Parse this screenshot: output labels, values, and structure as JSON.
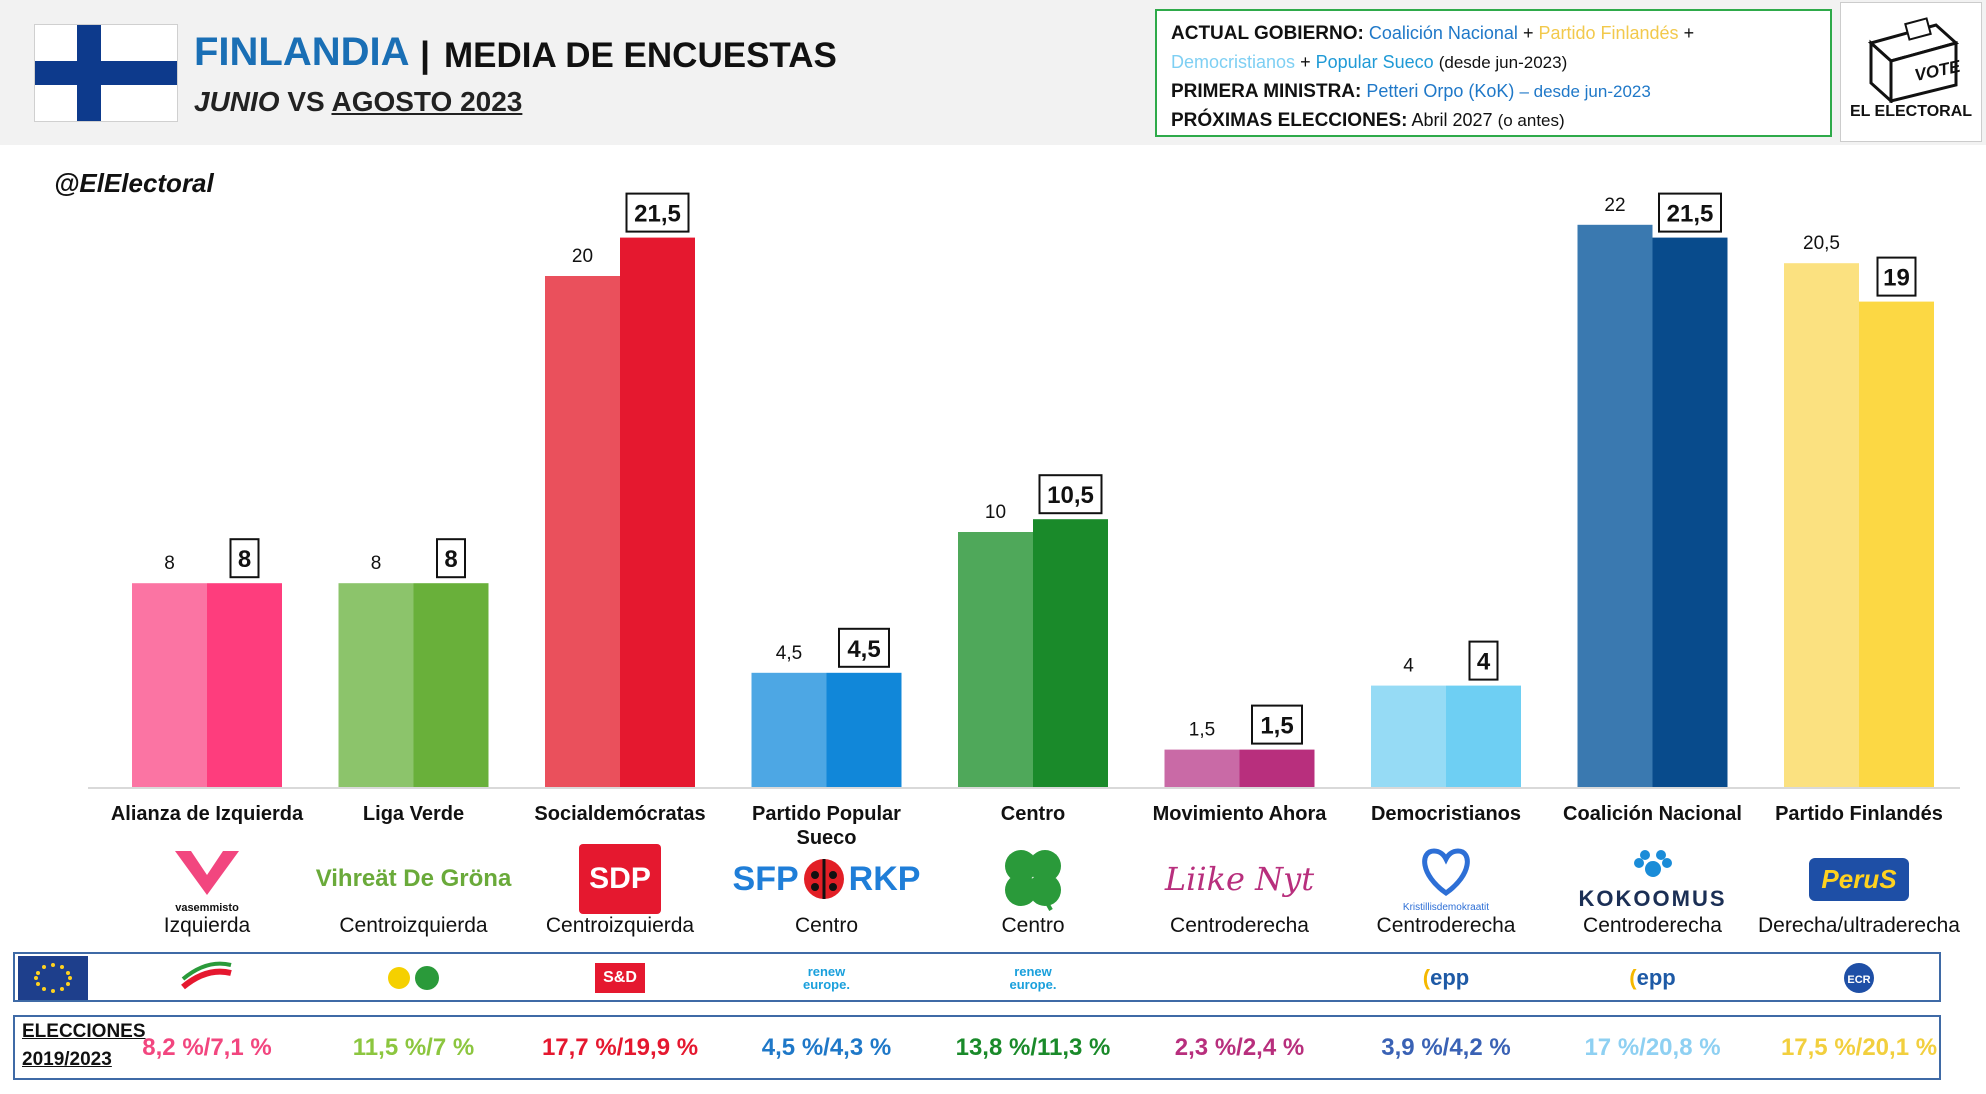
{
  "header": {
    "country": "FINLANDIA",
    "separator": "|",
    "title": "MEDIA DE ENCUESTAS",
    "subtitle_a": "JUNIO",
    "subtitle_b": "VS",
    "subtitle_c": "AGOSTO 2023",
    "handle": "@ElElectoral"
  },
  "infobox": {
    "gov_label": "ACTUAL GOBIERNO:",
    "gov_p1": "Coalición Nacional",
    "plus": "+",
    "gov_p2": "Partido Finlandés",
    "gov_p3": "Democristianos",
    "gov_p4": "Popular Sueco",
    "gov_since": "(desde jun-2023)",
    "pm_label": "PRIMERA MINISTRA:",
    "pm_name": "Petteri Orpo (KoK)",
    "pm_since": "– desde jun-2023",
    "next_label": "PRÓXIMAS ELECCIONES:",
    "next_value": "Abril 2027",
    "next_note": "(o antes)"
  },
  "vote_logo": {
    "vote_text": "VOTE",
    "brand": "EL ELECTORAL"
  },
  "chart_data": {
    "type": "bar",
    "categories": [
      "Alianza de Izquierda",
      "Liga Verde",
      "Socialdemócratas",
      "Partido Popular Sueco",
      "Centro",
      "Movimiento Ahora",
      "Democristianos",
      "Coalición Nacional",
      "Partido Finlandés"
    ],
    "series": [
      {
        "name": "JUNIO",
        "values": [
          8,
          8,
          20,
          4.5,
          10,
          1.5,
          4,
          22,
          20.5
        ],
        "labels": [
          "8",
          "8",
          "20",
          "4,5",
          "10",
          "1,5",
          "4",
          "22",
          "20,5"
        ]
      },
      {
        "name": "AGOSTO 2023",
        "values": [
          8,
          8,
          21.5,
          4.5,
          10.5,
          1.5,
          4,
          21.5,
          19
        ],
        "labels": [
          "8",
          "8",
          "21,5",
          "4,5",
          "10,5",
          "1,5",
          "4",
          "21,5",
          "19"
        ]
      }
    ],
    "colors_junio": [
      "#fb74a3",
      "#8cc46b",
      "#ea505c",
      "#4da7e4",
      "#4fa85a",
      "#c96aa6",
      "#96dbf5",
      "#3a79b0",
      "#fbe180"
    ],
    "colors_agosto": [
      "#fe3d7d",
      "#69b03a",
      "#e5182f",
      "#1187d9",
      "#1a8a2a",
      "#b82f7d",
      "#6ecff3",
      "#084b8c",
      "#fcd844"
    ],
    "ylim": [
      0,
      24
    ],
    "grid": false
  },
  "parties": [
    {
      "name": "Alianza de Izquierda",
      "ideology": "Izquierda",
      "logo": "vasemmisto",
      "eu_group": "left-icon",
      "election": "8,2 %/7,1 %",
      "color": "#f2467f"
    },
    {
      "name": "Liga Verde",
      "ideology": "Centroizquierda",
      "logo": "Vihreät De Gröna",
      "eu_group": "greens-icon",
      "election": "11,5 %/7 %",
      "color": "#8cc63f"
    },
    {
      "name": "Socialdemócratas",
      "ideology": "Centroizquierda",
      "logo": "SDP",
      "eu_group": "S&D",
      "election": "17,7 %/19,9 %",
      "color": "#e5182f"
    },
    {
      "name": "Partido Popular Sueco",
      "ideology": "Centro",
      "logo_a": "SFP",
      "logo_b": "RKP",
      "eu_group_a": "renew",
      "eu_group_b": "europe.",
      "election": "4,5 %/4,3 %",
      "color": "#1f78c8"
    },
    {
      "name": "Centro",
      "ideology": "Centro",
      "logo": "clover-icon",
      "eu_group_a": "renew",
      "eu_group_b": "europe.",
      "election": "13,8 %/11,3 %",
      "color": "#1a8a2a"
    },
    {
      "name": "Movimiento Ahora",
      "ideology": "Centroderecha",
      "logo": "Liike Nyt",
      "election": "2,3 %/2,4 %",
      "color": "#b82f7d"
    },
    {
      "name": "Democristianos",
      "ideology": "Centroderecha",
      "logo": "Kristillisdemokraatit",
      "eu_group": "epp",
      "election": "3,9 %/4,2 %",
      "color": "#3a62b5"
    },
    {
      "name": "Coalición Nacional",
      "ideology": "Centroderecha",
      "logo": "KOKOOMUS",
      "eu_group": "epp",
      "election": "17 %/20,8 %",
      "color": "#8ed0f2"
    },
    {
      "name": "Partido Finlandés",
      "ideology": "Derecha/ultraderecha",
      "logo": "PeruS",
      "eu_group": "ECR",
      "election": "17,5 %/20,1 %",
      "color": "#f2cf3e"
    }
  ],
  "elections_label_1": "ELECCIONES",
  "elections_label_2": "2019/2023"
}
